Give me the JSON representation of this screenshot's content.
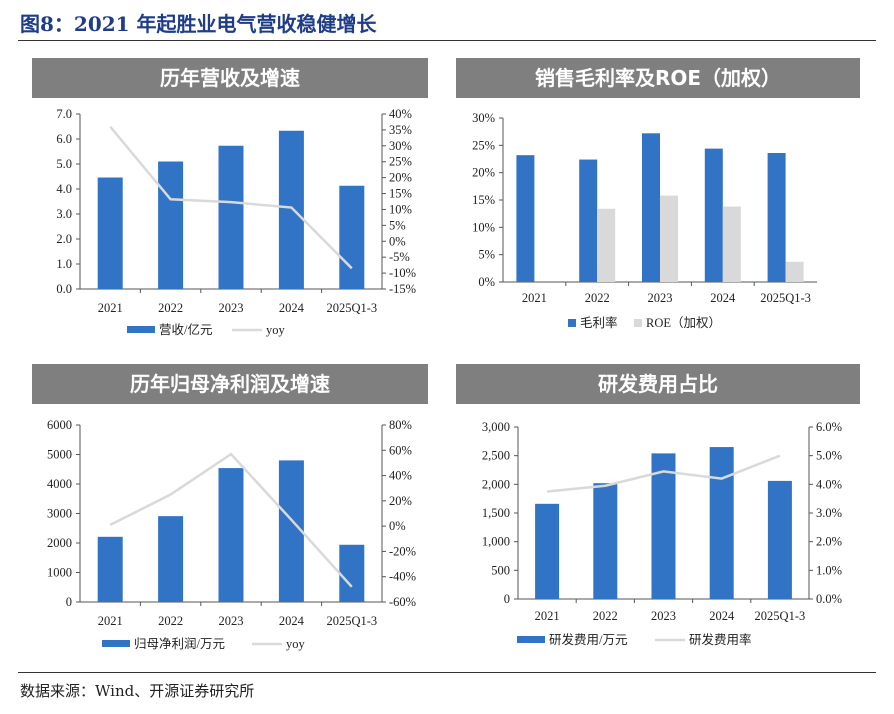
{
  "figure_title": "图8：2021 年起胜业电气营收稳健增长",
  "source": "数据来源：Wind、开源证券研究所",
  "colors": {
    "bar": "#3174c5",
    "line": "#d9d9d9",
    "bar2": "#d9d9d9",
    "title": "#1f3c88",
    "header": "#7f7f7f"
  },
  "chart_data": [
    {
      "type": "bar+line",
      "title": "历年营收及增速",
      "categories": [
        "2021",
        "2022",
        "2023",
        "2024",
        "2025Q1-3"
      ],
      "series": [
        {
          "name": "营收/亿元",
          "type": "bar",
          "axis": "left",
          "values": [
            4.46,
            5.1,
            5.73,
            6.33,
            4.13
          ]
        },
        {
          "name": "yoy",
          "type": "line",
          "axis": "right",
          "values": [
            36,
            13.2,
            12.3,
            10.6,
            -8.5
          ]
        }
      ],
      "left_axis": {
        "ylim": [
          0,
          7
        ],
        "ticks": [
          "0.0",
          "1.0",
          "2.0",
          "3.0",
          "4.0",
          "5.0",
          "6.0",
          "7.0"
        ]
      },
      "right_axis": {
        "ylim": [
          -15,
          40
        ],
        "unit": "%",
        "ticks": [
          "-15%",
          "-10%",
          "-5%",
          "0%",
          "5%",
          "10%",
          "15%",
          "20%",
          "25%",
          "30%",
          "35%",
          "40%"
        ]
      },
      "legend": "bottom",
      "grid": false
    },
    {
      "type": "bar",
      "title": "销售毛利率及ROE（加权）",
      "categories": [
        "2021",
        "2022",
        "2023",
        "2024",
        "2025Q1-3"
      ],
      "series": [
        {
          "name": "毛利率",
          "type": "bar",
          "axis": "left",
          "values": [
            23.2,
            22.4,
            27.2,
            24.4,
            23.6
          ]
        },
        {
          "name": "ROE（加权）",
          "type": "bar",
          "axis": "left",
          "values": [
            null,
            13.4,
            15.8,
            13.8,
            3.7
          ]
        }
      ],
      "left_axis": {
        "ylim": [
          0,
          30
        ],
        "unit": "%",
        "ticks": [
          "0%",
          "5%",
          "10%",
          "15%",
          "20%",
          "25%",
          "30%"
        ]
      },
      "legend": "bottom",
      "grid": false
    },
    {
      "type": "bar+line",
      "title": "历年归母净利润及增速",
      "categories": [
        "2021",
        "2022",
        "2023",
        "2024",
        "2025Q1-3"
      ],
      "series": [
        {
          "name": "归母净利润/万元",
          "type": "bar",
          "axis": "left",
          "values": [
            2210,
            2910,
            4540,
            4800,
            1940
          ]
        },
        {
          "name": "yoy",
          "type": "line",
          "axis": "right",
          "values": [
            1,
            25,
            57,
            5,
            -48
          ]
        }
      ],
      "left_axis": {
        "ylim": [
          0,
          6000
        ],
        "ticks": [
          "0",
          "1000",
          "2000",
          "3000",
          "4000",
          "5000",
          "6000"
        ]
      },
      "right_axis": {
        "ylim": [
          -60,
          80
        ],
        "unit": "%",
        "ticks": [
          "-60%",
          "-40%",
          "-20%",
          "0%",
          "20%",
          "40%",
          "60%",
          "80%"
        ]
      },
      "legend": "bottom",
      "grid": false
    },
    {
      "type": "bar+line",
      "title": "研发费用占比",
      "categories": [
        "2021",
        "2022",
        "2023",
        "2024",
        "2025Q1-3"
      ],
      "series": [
        {
          "name": "研发费用/万元",
          "type": "bar",
          "axis": "left",
          "values": [
            1660,
            2020,
            2540,
            2650,
            2060
          ]
        },
        {
          "name": "研发费用率",
          "type": "line",
          "axis": "right",
          "values": [
            3.75,
            3.95,
            4.45,
            4.2,
            5.0
          ]
        }
      ],
      "left_axis": {
        "ylim": [
          0,
          3000
        ],
        "ticks": [
          "0",
          "500",
          "1,000",
          "1,500",
          "2,000",
          "2,500",
          "3,000"
        ]
      },
      "right_axis": {
        "ylim": [
          0,
          6
        ],
        "unit": "%",
        "ticks": [
          "0.0%",
          "1.0%",
          "2.0%",
          "3.0%",
          "4.0%",
          "5.0%",
          "6.0%"
        ]
      },
      "legend": "bottom",
      "grid": false
    }
  ]
}
